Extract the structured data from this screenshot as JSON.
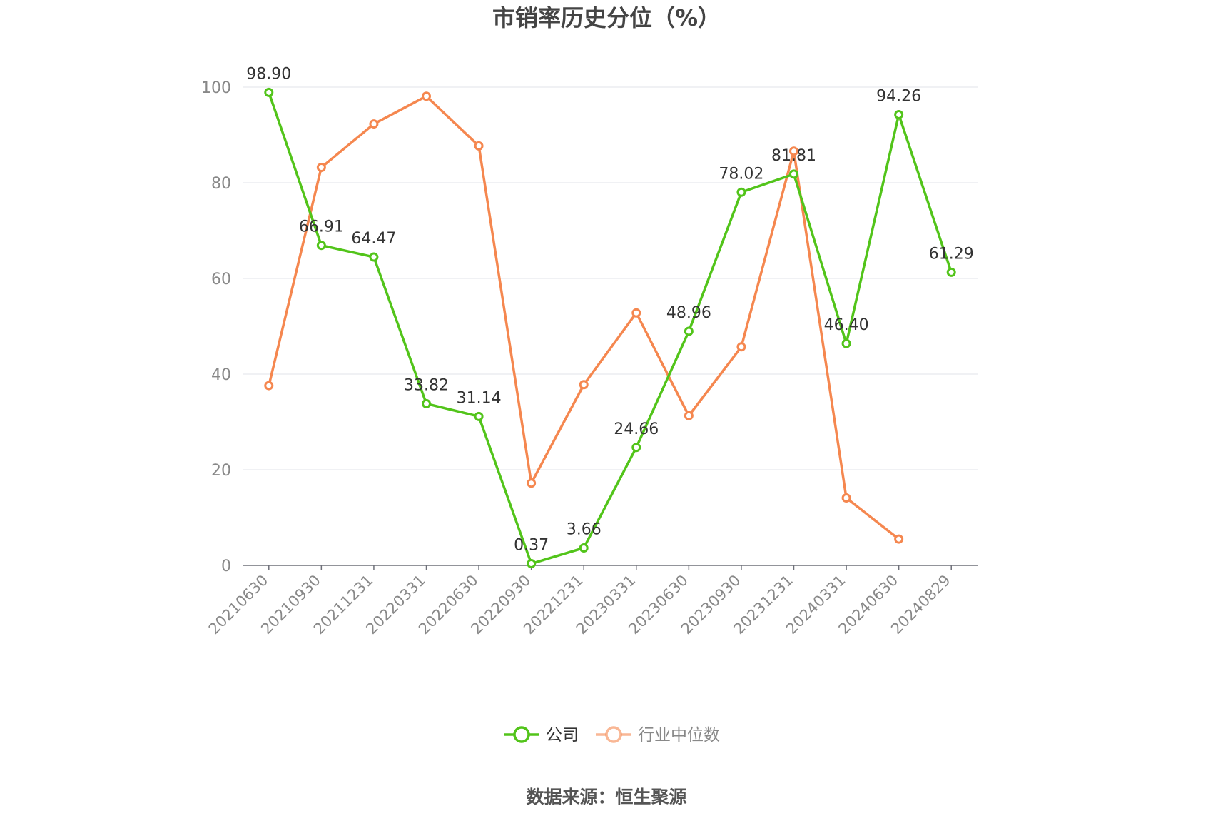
{
  "chart_data": {
    "type": "line",
    "title": "市销率历史分位（%）",
    "source": "数据来源：恒生聚源",
    "categories": [
      "20210630",
      "20210930",
      "20211231",
      "20220331",
      "20220630",
      "20220930",
      "20221231",
      "20230331",
      "20230630",
      "20230930",
      "20231231",
      "20240331",
      "20240630",
      "20240829"
    ],
    "ylim": [
      0,
      100
    ],
    "yticks": [
      0,
      20,
      40,
      60,
      80,
      100
    ],
    "grid": true,
    "legend_position": "bottom",
    "series": [
      {
        "name": "公司",
        "color": "#52c41a",
        "show_labels": true,
        "values": [
          98.9,
          66.91,
          64.47,
          33.82,
          31.14,
          0.37,
          3.66,
          24.66,
          48.96,
          78.02,
          81.81,
          46.4,
          94.26,
          61.29
        ]
      },
      {
        "name": "行业中位数",
        "color": "#f5874f",
        "show_labels": false,
        "values": [
          37.6,
          83.2,
          92.3,
          98.1,
          87.7,
          17.2,
          37.8,
          52.8,
          31.3,
          45.7,
          86.6,
          14.1,
          5.5,
          null
        ]
      }
    ]
  }
}
